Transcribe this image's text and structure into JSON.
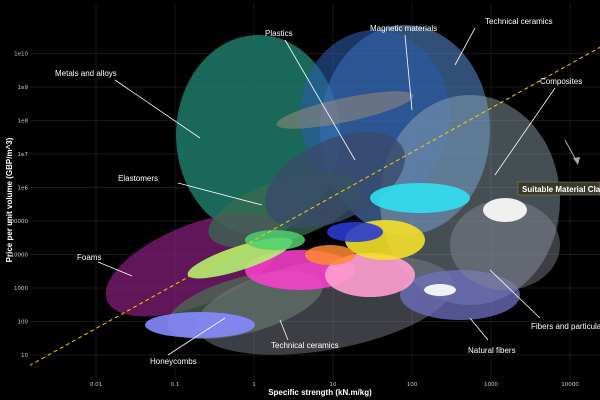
{
  "chart_data": {
    "type": "scatter",
    "title": "",
    "xlabel": "Specific strength (kN.m/kg)",
    "ylabel": "Price per unit volume (GBP/m^3)",
    "x_scale": "log",
    "y_scale": "log",
    "x_ticks": [
      "0.01",
      "0.1",
      "1",
      "10",
      "100",
      "1000",
      "10000"
    ],
    "y_ticks": [
      "1e10",
      "1e9",
      "1e8",
      "1e7",
      "1e6",
      "100000",
      "10000",
      "1000",
      "100",
      "10"
    ],
    "grid": true,
    "colors": {
      "background": "#000000",
      "grid": "#333333",
      "guideline": "#f0d000",
      "metals": "#1f7a68",
      "magnetic": "#2a5aa8",
      "ceramics": "#5a8fd8",
      "composites": "#9ab0b8",
      "plastics": "#3a4a6a",
      "elastomers": "#3a6a50",
      "foams": "#8a2080",
      "honeycombs": "#4a7050",
      "natural": "#7070c0",
      "fibers": "#7a7a88",
      "highlight_fill": "#3a3a2a",
      "highlight_text": "#fff8d0"
    },
    "classes": [
      {
        "label": "Metals and alloys",
        "x_range": [
          0.3,
          4000
        ],
        "y_range": [
          500000,
          50000000000
        ]
      },
      {
        "label": "Plastics",
        "x_range": [
          3,
          500
        ],
        "y_range": [
          30000,
          20000000
        ]
      },
      {
        "label": "Magnetic materials",
        "x_range": [
          10,
          1000
        ],
        "y_range": [
          300000,
          20000000000
        ]
      },
      {
        "label": "Technical ceramics",
        "x_range": [
          30,
          5000
        ],
        "y_range": [
          300000,
          30000000000
        ]
      },
      {
        "label": "Composites",
        "x_range": [
          100,
          8000
        ],
        "y_range": [
          3000,
          10000000
        ]
      },
      {
        "label": "Elastomers",
        "x_range": [
          1,
          50
        ],
        "y_range": [
          10000,
          3000000
        ]
      },
      {
        "label": "Foams",
        "x_range": [
          0.01,
          20
        ],
        "y_range": [
          100,
          30000
        ]
      },
      {
        "label": "Honeycombs",
        "x_range": [
          0.1,
          30
        ],
        "y_range": [
          30,
          10000
        ]
      },
      {
        "label": "Technical ceramics",
        "x_range": [
          1,
          300
        ],
        "y_range": [
          30,
          3000
        ]
      },
      {
        "label": "Natural fibers",
        "x_range": [
          30,
          1000
        ],
        "y_range": [
          30,
          3000
        ]
      },
      {
        "label": "Fibers and particulates",
        "x_range": [
          100,
          5000
        ],
        "y_range": [
          100,
          30000
        ]
      }
    ],
    "guideline": {
      "style": "dashed",
      "x": [
        0.001,
        100000
      ],
      "y": [
        3,
        100000000000
      ]
    },
    "annotation": {
      "label": "Suitable Material Cla"
    }
  }
}
